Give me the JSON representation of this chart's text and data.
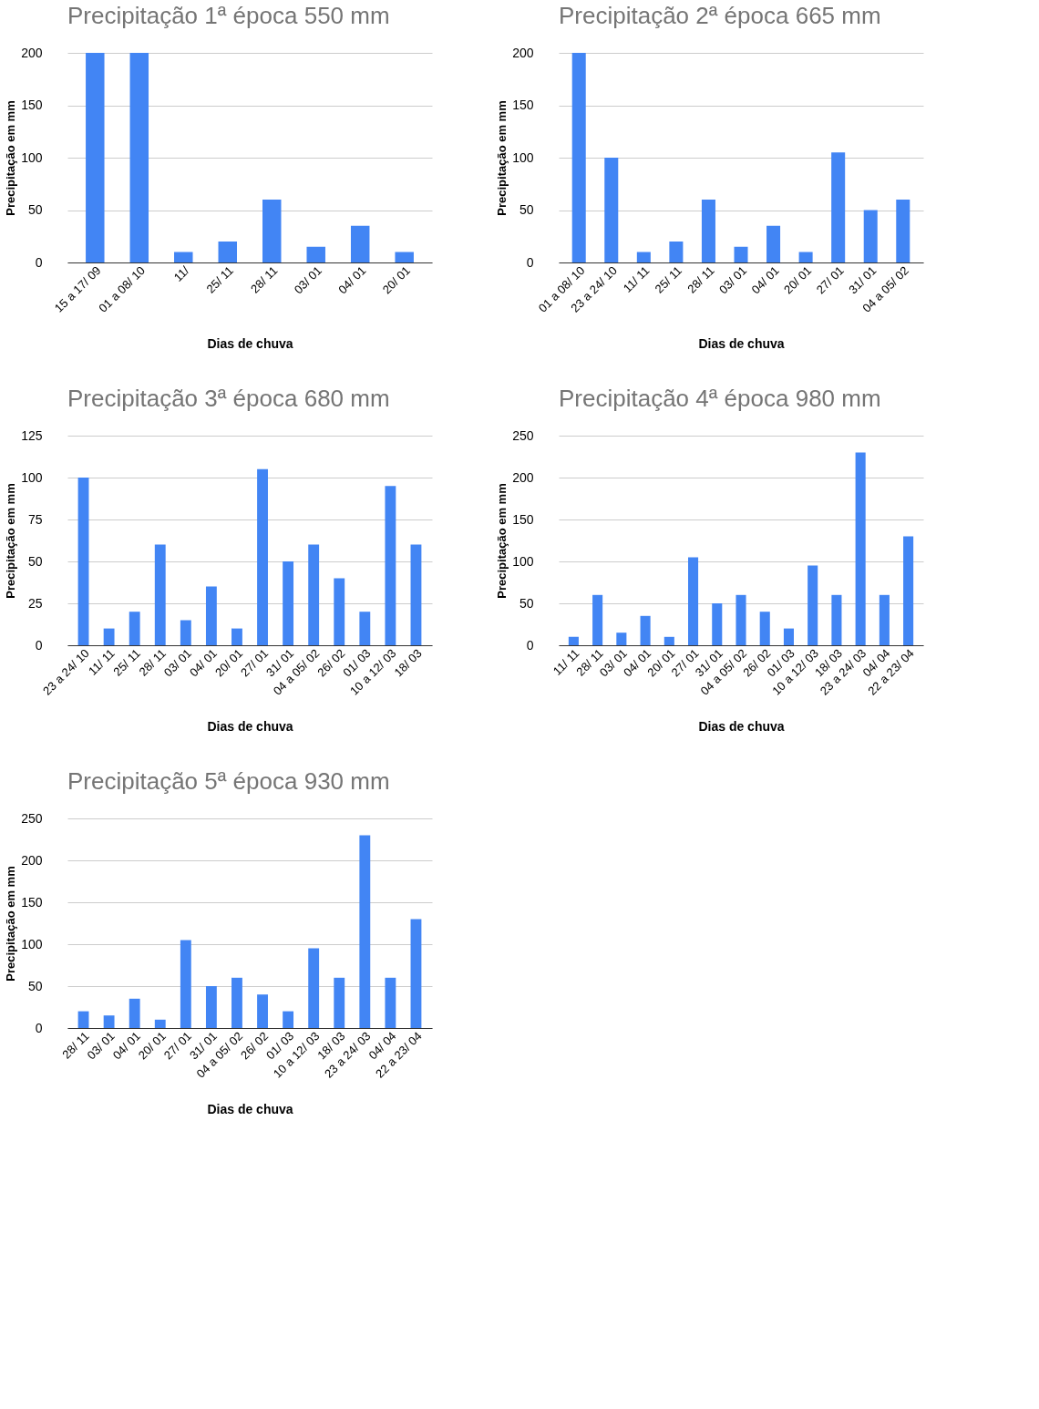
{
  "chart_data": [
    {
      "type": "bar",
      "title": "Precipitação 1ª época 550 mm",
      "xlabel": "Dias de chuva",
      "ylabel": "Precipitação em mm",
      "categories": [
        "15 a 17/ 09",
        "01 a 08/ 10",
        "11/",
        "25/ 11",
        "28/ 11",
        "03/ 01",
        "04/ 01",
        "20/ 01"
      ],
      "values": [
        200,
        200,
        10,
        20,
        60,
        15,
        35,
        10
      ],
      "color": "#4285f4",
      "ylim": [
        0,
        200
      ],
      "yticks": [
        0,
        50,
        100,
        150,
        200
      ],
      "grid": "y"
    },
    {
      "type": "bar",
      "title": "Precipitação 2ª época 665 mm",
      "xlabel": "Dias de chuva",
      "ylabel": "Precipitação em mm",
      "categories": [
        "01 a 08/ 10",
        "23 a 24/ 10",
        "11/ 11",
        "25/ 11",
        "28/ 11",
        "03/ 01",
        "04/ 01",
        "20/ 01",
        "27/ 01",
        "31/ 01",
        "04 a 05/ 02"
      ],
      "values": [
        200,
        100,
        10,
        20,
        60,
        15,
        35,
        10,
        105,
        50,
        60
      ],
      "color": "#4285f4",
      "ylim": [
        0,
        200
      ],
      "yticks": [
        0,
        50,
        100,
        150,
        200
      ],
      "grid": "y"
    },
    {
      "type": "bar",
      "title": "Precipitação 3ª época 680 mm",
      "xlabel": "Dias de chuva",
      "ylabel": "Precipitação em mm",
      "categories": [
        "23 a 24/ 10",
        "11/ 11",
        "25/ 11",
        "28/ 11",
        "03/ 01",
        "04/ 01",
        "20/ 01",
        "27/ 01",
        "31/ 01",
        "04 a 05/ 02",
        "26/ 02",
        "01/ 03",
        "10 a 12/ 03",
        "18/ 03"
      ],
      "values": [
        100,
        10,
        20,
        60,
        15,
        35,
        10,
        105,
        50,
        60,
        40,
        20,
        95,
        60
      ],
      "color": "#4285f4",
      "ylim": [
        0,
        125
      ],
      "yticks": [
        0,
        25,
        50,
        75,
        100,
        125
      ],
      "grid": "y"
    },
    {
      "type": "bar",
      "title": "Precipitação 4ª época 980 mm",
      "xlabel": "Dias de chuva",
      "ylabel": "Precipitação em mm",
      "categories": [
        "11/ 11",
        "28/ 11",
        "03/ 01",
        "04/ 01",
        "20/ 01",
        "27/ 01",
        "31/ 01",
        "04 a 05/ 02",
        "26/ 02",
        "01/ 03",
        "10 a 12/ 03",
        "18/ 03",
        "23 a 24/ 03",
        "04/ 04",
        "22 a 23/ 04"
      ],
      "values": [
        10,
        60,
        15,
        35,
        10,
        105,
        50,
        60,
        40,
        20,
        95,
        60,
        230,
        60,
        130
      ],
      "color": "#4285f4",
      "ylim": [
        0,
        250
      ],
      "yticks": [
        0,
        50,
        100,
        150,
        200,
        250
      ],
      "grid": "y"
    },
    {
      "type": "bar",
      "title": "Precipitação 5ª época 930 mm",
      "xlabel": "Dias de chuva",
      "ylabel": "Precipitação em mm",
      "categories": [
        "28/ 11",
        "03/ 01",
        "04/ 01",
        "20/ 01",
        "27/ 01",
        "31/ 01",
        "04 a 05/ 02",
        "26/ 02",
        "01/ 03",
        "10 a 12/ 03",
        "18/ 03",
        "23 a 24/ 03",
        "04/ 04",
        "22 a 23/ 04"
      ],
      "values": [
        20,
        15,
        35,
        10,
        105,
        50,
        60,
        40,
        20,
        95,
        60,
        230,
        60,
        130
      ],
      "color": "#4285f4",
      "ylim": [
        0,
        250
      ],
      "yticks": [
        0,
        50,
        100,
        150,
        200,
        250
      ],
      "grid": "y"
    }
  ]
}
